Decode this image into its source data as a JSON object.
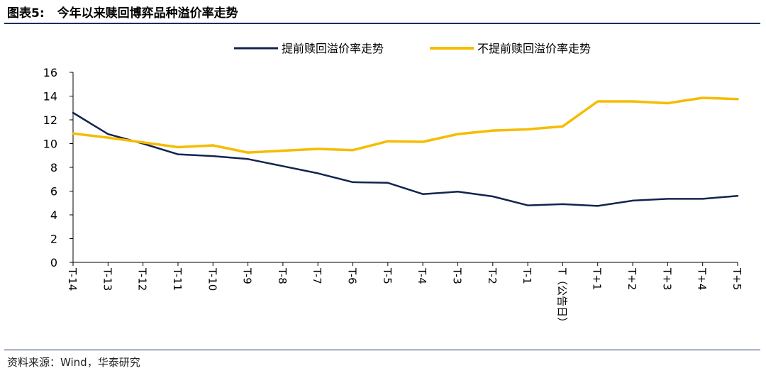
{
  "header": {
    "label": "图表5:",
    "title": "今年以来赎回博弈品种溢价率走势"
  },
  "source": "资料来源：Wind，华泰研究",
  "colors": {
    "series1": "#13244f",
    "series2": "#f5bc00",
    "axis": "#000000",
    "rule": "#1b2f5e"
  },
  "chart_data": {
    "type": "line",
    "x": [
      "T-14",
      "T-13",
      "T-12",
      "T-11",
      "T-10",
      "T-9",
      "T-8",
      "T-7",
      "T-6",
      "T-5",
      "T-4",
      "T-3",
      "T-2",
      "T-1",
      "T（公告日）",
      "T+1",
      "T+2",
      "T+3",
      "T+4",
      "T+5"
    ],
    "series": [
      {
        "name": "提前赎回溢价率走势",
        "values": [
          12.6,
          10.8,
          10.0,
          9.1,
          8.95,
          8.7,
          8.1,
          7.5,
          6.75,
          6.7,
          5.75,
          5.95,
          5.55,
          4.8,
          4.9,
          4.75,
          5.2,
          5.35,
          5.35,
          5.6
        ]
      },
      {
        "name": "不提前赎回溢价率走势",
        "values": [
          10.85,
          10.5,
          10.1,
          9.7,
          9.85,
          9.25,
          9.4,
          9.55,
          9.45,
          10.2,
          10.15,
          10.8,
          11.1,
          11.2,
          11.45,
          13.55,
          13.55,
          13.4,
          13.85,
          13.75
        ]
      }
    ],
    "ylim": [
      0,
      16
    ],
    "yticks": [
      "0",
      "2",
      "4",
      "6",
      "8",
      "10",
      "12",
      "14",
      "16"
    ],
    "legend_position": "top-center",
    "grid": false
  }
}
